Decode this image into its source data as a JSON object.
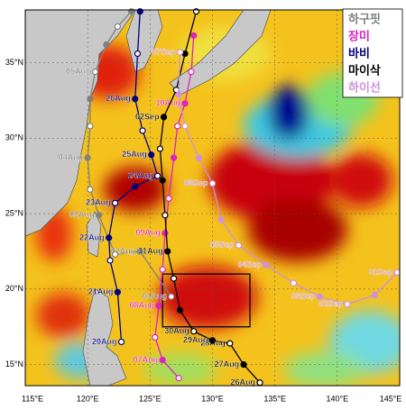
{
  "chart_data": {
    "type": "track-map",
    "xlim": [
      115,
      145
    ],
    "ylim": [
      13.6,
      38.5
    ],
    "xticks": [
      {
        "value": 115,
        "label": "115°E"
      },
      {
        "value": 120,
        "label": "120°E"
      },
      {
        "value": 125,
        "label": "125°E"
      },
      {
        "value": 130,
        "label": "130°E"
      },
      {
        "value": 135,
        "label": "135°E"
      },
      {
        "value": 140,
        "label": "140°E"
      },
      {
        "value": 145,
        "label": "145°E"
      }
    ],
    "yticks": [
      {
        "value": 15,
        "label": "15°N"
      },
      {
        "value": 20,
        "label": "20°N"
      },
      {
        "value": 25,
        "label": "25°N"
      },
      {
        "value": 30,
        "label": "30°N"
      },
      {
        "value": 35,
        "label": "35°N"
      }
    ],
    "grid": true,
    "legend": "upper right",
    "box": {
      "lon": [
        126,
        133
      ],
      "lat": [
        17.5,
        21
      ],
      "color": "#000000"
    },
    "series": [
      {
        "name": "하구핏",
        "color": "#808080",
        "x": [
          126.7,
          124.2,
          122.2,
          120.9,
          120.2,
          120.0,
          120.2,
          120.2,
          120.6,
          121.5,
          122.4,
          123.5
        ],
        "y": [
          19.5,
          22.5,
          22.3,
          24.9,
          26.6,
          28.7,
          30.8,
          32.6,
          34.4,
          36.2,
          37.4,
          38.4
        ],
        "labels": [
          "01Aug",
          "02Aug",
          null,
          "03Aug",
          null,
          "04Aug",
          null,
          null,
          "05Aug",
          null,
          null,
          null
        ]
      },
      {
        "name": "장미",
        "color": "#e020c0",
        "x": [
          127.3,
          126.0,
          125.4,
          125.7,
          126.0,
          126.2,
          126.5,
          126.9,
          127.2,
          127.8,
          128.3,
          128.5
        ],
        "y": [
          14.1,
          15.3,
          16.8,
          18.9,
          21.3,
          23.7,
          26.0,
          28.7,
          30.8,
          32.3,
          34.4,
          36.8
        ],
        "labels": [
          null,
          "07Aug",
          null,
          "08Aug",
          null,
          "09Aug",
          null,
          null,
          null,
          "10Aug",
          null,
          null
        ]
      },
      {
        "name": "바비",
        "color": "#000080",
        "x": [
          122.7,
          122.4,
          121.8,
          121.7,
          122.2,
          123.8,
          125.6,
          125.1,
          124.4,
          123.8,
          124.0,
          124.2
        ],
        "y": [
          16.5,
          19.8,
          21.9,
          23.4,
          25.7,
          26.8,
          27.5,
          28.9,
          30.5,
          32.6,
          35.6,
          38.4
        ],
        "labels": [
          "20Aug",
          "21Aug",
          null,
          "22Aug",
          "23Aug",
          null,
          "24Aug",
          "25Aug",
          null,
          "26Aug",
          null,
          null
        ]
      },
      {
        "name": "마이삭",
        "color": "#000000",
        "x": [
          133.8,
          132.5,
          131.4,
          130.0,
          128.5,
          127.4,
          126.9,
          126.4,
          126.2,
          126.0,
          125.8,
          126.1,
          127.1,
          127.8,
          128.7
        ],
        "y": [
          13.8,
          15.0,
          16.4,
          16.6,
          17.2,
          18.6,
          20.7,
          22.5,
          24.9,
          27.2,
          29.3,
          31.4,
          33.2,
          35.6,
          38.4
        ],
        "labels": [
          "26Aug",
          "27Aug",
          "28Aug",
          "29Aug",
          "30Aug",
          null,
          null,
          "31Aug",
          null,
          null,
          null,
          "02Sep",
          null,
          null,
          null
        ]
      },
      {
        "name": "하이선",
        "color": "#d090e0",
        "x": [
          144.8,
          143.0,
          140.8,
          138.6,
          136.5,
          134.3,
          132.1,
          130.7,
          130.0,
          128.9,
          127.8,
          127.3,
          127.4
        ],
        "y": [
          21.1,
          19.6,
          19.0,
          19.5,
          20.4,
          21.6,
          22.9,
          24.6,
          27.0,
          28.7,
          30.8,
          32.9,
          35.7
        ],
        "labels": [
          "01Sep",
          null,
          "02Sep",
          "03Sep",
          null,
          "04Sep",
          "05Sep",
          null,
          "06Sep",
          null,
          null,
          null,
          "07Sep"
        ]
      }
    ]
  }
}
